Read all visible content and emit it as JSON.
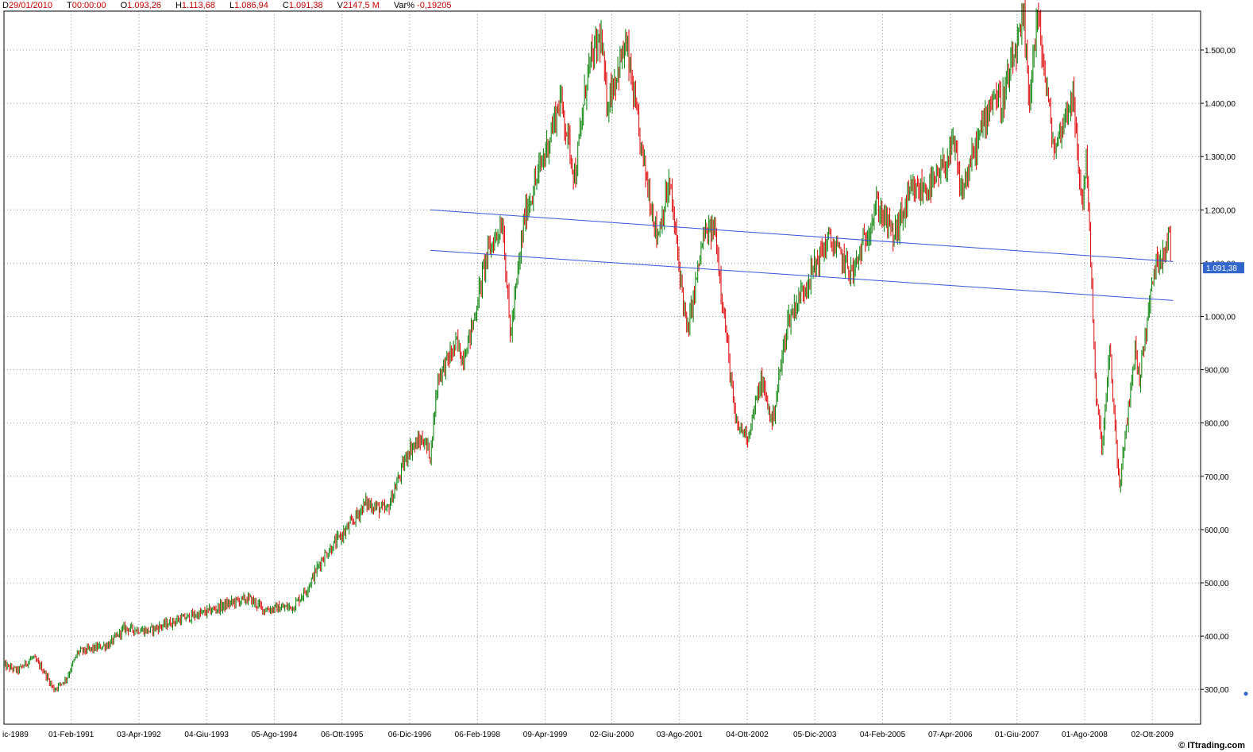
{
  "header": {
    "date": "29/01/2010",
    "time": "00:00:00",
    "open": "1.093,26",
    "high": "1.113,68",
    "low": "1.086,94",
    "close": "1.091,38",
    "volume": "2147,5 M",
    "varpct": "-0,19205"
  },
  "credit": "© ITtrading.com",
  "colors": {
    "up": "#008000",
    "down": "#e00000",
    "trendline": "#3355dd",
    "grid": "#999999",
    "last_price_bg": "#3366cc"
  },
  "chart_data": {
    "type": "candlestick",
    "y_ticks": [
      300,
      400,
      500,
      600,
      700,
      800,
      900,
      1000,
      1100,
      1200,
      1300,
      1400,
      1500
    ],
    "y_tick_labels": [
      "300,00",
      "400,00",
      "500,00",
      "600,00",
      "700,00",
      "800,00",
      "900,00",
      "1.000,00",
      "1.100,00",
      "1.200,00",
      "1.300,00",
      "1.400,00",
      "1.500,00"
    ],
    "x_start": "1989-12-04",
    "x_end": "2010-01-29",
    "x_ticks": [
      "1989-12-04",
      "1991-02-01",
      "1992-04-03",
      "1993-06-04",
      "1994-08-05",
      "1995-10-06",
      "1996-12-06",
      "1998-02-06",
      "1999-04-09",
      "2000-06-02",
      "2001-08-03",
      "2002-10-04",
      "2003-12-05",
      "2005-02-04",
      "2006-04-07",
      "2007-06-01",
      "2008-08-01",
      "2009-10-02"
    ],
    "x_tick_labels": [
      "ic-1989",
      "01-Feb-1991",
      "03-Apr-1992",
      "04-Giu-1993",
      "05-Ago-1994",
      "06-Ott-1995",
      "06-Dic-1996",
      "06-Feb-1998",
      "09-Apr-1999",
      "02-Giu-2000",
      "03-Ago-2001",
      "04-Ott-2002",
      "05-Dic-2003",
      "04-Feb-2005",
      "07-Apr-2006",
      "01-Giu-2007",
      "01-Ago-2008",
      "02-Ott-2009"
    ],
    "last_price": 1091.38,
    "last_price_label": "1.091,38",
    "series": [
      {
        "date": "1989-12-04",
        "close": 345
      },
      {
        "date": "1990-03-01",
        "close": 335
      },
      {
        "date": "1990-06-01",
        "close": 360
      },
      {
        "date": "1990-08-01",
        "close": 340
      },
      {
        "date": "1990-10-15",
        "close": 300
      },
      {
        "date": "1991-01-01",
        "close": 320
      },
      {
        "date": "1991-03-15",
        "close": 370
      },
      {
        "date": "1991-06-01",
        "close": 375
      },
      {
        "date": "1991-10-01",
        "close": 385
      },
      {
        "date": "1992-01-01",
        "close": 415
      },
      {
        "date": "1992-06-01",
        "close": 410
      },
      {
        "date": "1992-12-01",
        "close": 430
      },
      {
        "date": "1993-06-01",
        "close": 445
      },
      {
        "date": "1993-12-01",
        "close": 465
      },
      {
        "date": "1994-03-01",
        "close": 470
      },
      {
        "date": "1994-06-01",
        "close": 450
      },
      {
        "date": "1994-12-01",
        "close": 455
      },
      {
        "date": "1995-03-01",
        "close": 490
      },
      {
        "date": "1995-06-01",
        "close": 545
      },
      {
        "date": "1995-12-01",
        "close": 610
      },
      {
        "date": "1996-03-01",
        "close": 650
      },
      {
        "date": "1996-07-15",
        "close": 635
      },
      {
        "date": "1996-12-01",
        "close": 750
      },
      {
        "date": "1997-03-01",
        "close": 770
      },
      {
        "date": "1997-04-15",
        "close": 740
      },
      {
        "date": "1997-06-01",
        "close": 885
      },
      {
        "date": "1997-10-01",
        "close": 950
      },
      {
        "date": "1997-11-01",
        "close": 920
      },
      {
        "date": "1998-01-01",
        "close": 975
      },
      {
        "date": "1998-04-01",
        "close": 1110
      },
      {
        "date": "1998-07-15",
        "close": 1180
      },
      {
        "date": "1998-09-01",
        "close": 960
      },
      {
        "date": "1998-12-01",
        "close": 1190
      },
      {
        "date": "1999-04-01",
        "close": 1300
      },
      {
        "date": "1999-07-15",
        "close": 1410
      },
      {
        "date": "1999-10-15",
        "close": 1260
      },
      {
        "date": "2000-01-01",
        "close": 1460
      },
      {
        "date": "2000-03-24",
        "close": 1527
      },
      {
        "date": "2000-05-01",
        "close": 1400
      },
      {
        "date": "2000-09-01",
        "close": 1510
      },
      {
        "date": "2000-12-01",
        "close": 1320
      },
      {
        "date": "2001-03-15",
        "close": 1150
      },
      {
        "date": "2001-06-01",
        "close": 1250
      },
      {
        "date": "2001-09-21",
        "close": 965
      },
      {
        "date": "2002-01-01",
        "close": 1150
      },
      {
        "date": "2002-03-15",
        "close": 1165
      },
      {
        "date": "2002-07-23",
        "close": 797
      },
      {
        "date": "2002-10-09",
        "close": 776
      },
      {
        "date": "2003-01-01",
        "close": 880
      },
      {
        "date": "2003-03-11",
        "close": 800
      },
      {
        "date": "2003-06-15",
        "close": 990
      },
      {
        "date": "2003-12-31",
        "close": 1111
      },
      {
        "date": "2004-03-01",
        "close": 1145
      },
      {
        "date": "2004-08-01",
        "close": 1080
      },
      {
        "date": "2004-12-31",
        "close": 1211
      },
      {
        "date": "2005-04-15",
        "close": 1150
      },
      {
        "date": "2005-08-01",
        "close": 1230
      },
      {
        "date": "2005-12-31",
        "close": 1248
      },
      {
        "date": "2006-05-01",
        "close": 1320
      },
      {
        "date": "2006-06-15",
        "close": 1230
      },
      {
        "date": "2006-12-31",
        "close": 1418
      },
      {
        "date": "2007-02-27",
        "close": 1400
      },
      {
        "date": "2007-07-15",
        "close": 1552
      },
      {
        "date": "2007-08-15",
        "close": 1406
      },
      {
        "date": "2007-10-09",
        "close": 1565
      },
      {
        "date": "2008-01-22",
        "close": 1310
      },
      {
        "date": "2008-05-15",
        "close": 1420
      },
      {
        "date": "2008-07-15",
        "close": 1210
      },
      {
        "date": "2008-08-15",
        "close": 1300
      },
      {
        "date": "2008-10-10",
        "close": 850
      },
      {
        "date": "2008-11-20",
        "close": 752
      },
      {
        "date": "2009-01-06",
        "close": 935
      },
      {
        "date": "2009-03-09",
        "close": 676
      },
      {
        "date": "2009-06-15",
        "close": 940
      },
      {
        "date": "2009-07-10",
        "close": 880
      },
      {
        "date": "2009-10-15",
        "close": 1090
      },
      {
        "date": "2010-01-19",
        "close": 1150
      },
      {
        "date": "2010-01-29",
        "close": 1091
      }
    ],
    "trendlines": [
      {
        "start": {
          "date": "1997-04-15",
          "value": 1200
        },
        "end": {
          "date": "2010-02-10",
          "value": 1103
        }
      },
      {
        "start": {
          "date": "1997-04-15",
          "value": 1124
        },
        "end": {
          "date": "2010-02-10",
          "value": 1030
        }
      }
    ]
  }
}
